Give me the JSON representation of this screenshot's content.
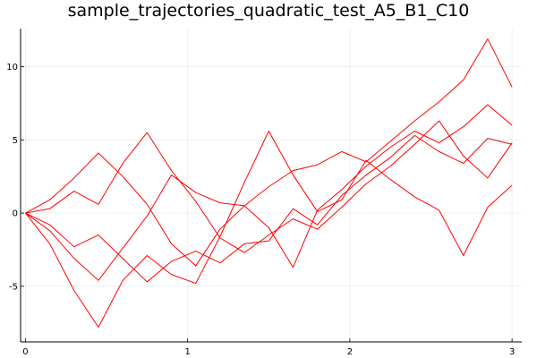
{
  "chart_data": {
    "type": "line",
    "title": "sample_trajectories_quadratic_test_A5_B1_C10",
    "xlabel": "",
    "ylabel": "",
    "xlim": [
      -0.03,
      3.06
    ],
    "ylim": [
      -8.8,
      12.6
    ],
    "x_ticks": [
      0,
      1,
      2,
      3
    ],
    "x_tick_labels": [
      "0",
      "1",
      "2",
      "3"
    ],
    "y_ticks": [
      -5,
      0,
      5,
      10
    ],
    "y_tick_labels": [
      "-5",
      "0",
      "5",
      "10"
    ],
    "grid": true,
    "legend": "none",
    "series_color": "#ff0000",
    "series": [
      {
        "x": [
          0,
          0.15,
          0.3,
          0.45,
          0.6,
          0.75,
          0.9,
          1.05,
          1.2,
          1.35,
          1.5,
          1.65,
          1.8,
          1.95,
          2.1,
          2.25,
          2.4,
          2.55,
          2.7,
          2.85,
          3.0
        ],
        "values": [
          0,
          -1.2,
          -3.1,
          -4.6,
          -2.4,
          -0.2,
          2.6,
          1.4,
          0.7,
          0.5,
          1.8,
          2.9,
          3.3,
          4.2,
          3.5,
          4.9,
          6.3,
          7.6,
          9.1,
          11.9,
          8.6
        ]
      },
      {
        "x": [
          0,
          0.15,
          0.3,
          0.45,
          0.6,
          0.75,
          0.9,
          1.05,
          1.2,
          1.35,
          1.5,
          1.65,
          1.8,
          1.95,
          2.1,
          2.25,
          2.4,
          2.55,
          2.7,
          2.85,
          3.0
        ],
        "values": [
          0,
          0.3,
          1.5,
          0.6,
          3.4,
          5.5,
          2.9,
          0.8,
          -1.7,
          -2.7,
          -1.5,
          -0.4,
          -1.1,
          0.4,
          2.0,
          3.2,
          4.7,
          6.3,
          3.9,
          2.4,
          4.8
        ]
      },
      {
        "x": [
          0,
          0.15,
          0.3,
          0.45,
          0.6,
          0.75,
          0.9,
          1.05,
          1.2,
          1.35,
          1.5,
          1.65,
          1.8,
          1.95,
          2.1,
          2.25,
          2.4,
          2.55,
          2.7,
          2.85,
          3.0
        ],
        "values": [
          0,
          0.9,
          2.4,
          4.1,
          2.5,
          0.6,
          -2.1,
          -3.6,
          -1.1,
          0.5,
          -1.0,
          -3.7,
          0.2,
          1.6,
          3.2,
          4.5,
          5.6,
          4.8,
          5.9,
          7.4,
          6.0
        ]
      },
      {
        "x": [
          0,
          0.15,
          0.3,
          0.45,
          0.6,
          0.75,
          0.9,
          1.05,
          1.2,
          1.35,
          1.5,
          1.65,
          1.8,
          1.95,
          2.1,
          2.25,
          2.4,
          2.55,
          2.7,
          2.85,
          3.0
        ],
        "values": [
          0,
          -2.1,
          -5.3,
          -7.8,
          -4.6,
          -2.9,
          -4.2,
          -4.8,
          -1.6,
          2.1,
          5.6,
          2.6,
          0.1,
          0.9,
          3.6,
          2.3,
          1.1,
          0.2,
          -2.9,
          0.4,
          1.9
        ]
      },
      {
        "x": [
          0,
          0.15,
          0.3,
          0.45,
          0.6,
          0.75,
          0.9,
          1.05,
          1.2,
          1.35,
          1.5,
          1.65,
          1.8,
          1.95,
          2.1,
          2.25,
          2.4,
          2.55,
          2.7,
          2.85,
          3.0
        ],
        "values": [
          0,
          -0.8,
          -2.3,
          -1.5,
          -3.1,
          -4.7,
          -3.3,
          -2.6,
          -3.4,
          -2.1,
          -1.9,
          0.3,
          -0.8,
          1.2,
          2.6,
          3.8,
          5.3,
          4.2,
          3.4,
          5.1,
          4.7
        ]
      }
    ]
  }
}
